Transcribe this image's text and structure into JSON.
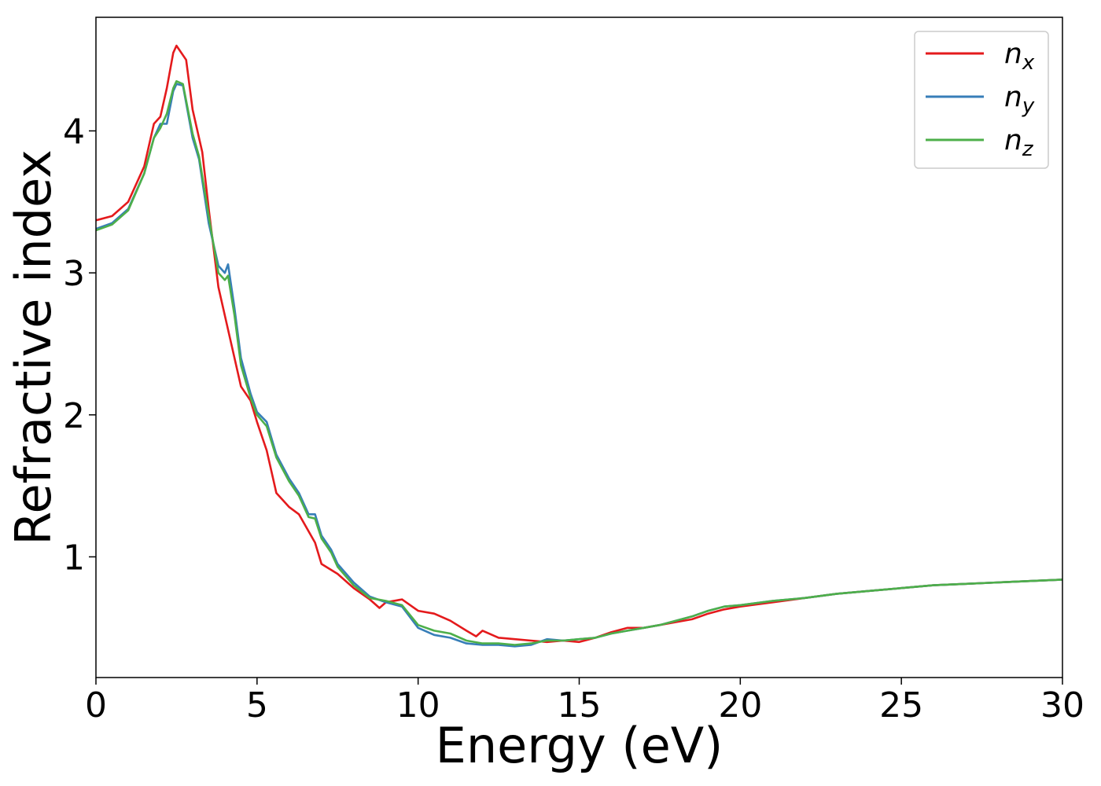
{
  "chart_data": {
    "type": "line",
    "title": "",
    "xlabel": "Energy (eV)",
    "ylabel": "Refractive index",
    "xlim": [
      0,
      30
    ],
    "ylim": [
      0.15,
      4.8
    ],
    "xticks": [
      0,
      5,
      10,
      15,
      20,
      25,
      30
    ],
    "xtick_labels": [
      "0",
      "5",
      "10",
      "15",
      "20",
      "25",
      "30"
    ],
    "yticks": [
      1,
      2,
      3,
      4
    ],
    "ytick_labels": [
      "1",
      "2",
      "3",
      "4"
    ],
    "grid": false,
    "legend_position": "top-right",
    "series": [
      {
        "name": "n",
        "sub": "x",
        "color": "#e41a1c",
        "points": [
          [
            0,
            3.37
          ],
          [
            0.5,
            3.4
          ],
          [
            1.0,
            3.5
          ],
          [
            1.5,
            3.75
          ],
          [
            1.8,
            4.05
          ],
          [
            2.0,
            4.1
          ],
          [
            2.2,
            4.3
          ],
          [
            2.4,
            4.55
          ],
          [
            2.5,
            4.6
          ],
          [
            2.8,
            4.5
          ],
          [
            3.0,
            4.15
          ],
          [
            3.3,
            3.85
          ],
          [
            3.5,
            3.45
          ],
          [
            3.8,
            2.9
          ],
          [
            4.0,
            2.7
          ],
          [
            4.2,
            2.5
          ],
          [
            4.5,
            2.2
          ],
          [
            4.8,
            2.1
          ],
          [
            5.0,
            1.95
          ],
          [
            5.3,
            1.75
          ],
          [
            5.6,
            1.45
          ],
          [
            6.0,
            1.35
          ],
          [
            6.3,
            1.3
          ],
          [
            6.8,
            1.1
          ],
          [
            7.0,
            0.95
          ],
          [
            7.5,
            0.88
          ],
          [
            8.0,
            0.78
          ],
          [
            8.5,
            0.7
          ],
          [
            8.8,
            0.64
          ],
          [
            9.0,
            0.68
          ],
          [
            9.5,
            0.7
          ],
          [
            10.0,
            0.62
          ],
          [
            10.5,
            0.6
          ],
          [
            11.0,
            0.55
          ],
          [
            11.5,
            0.48
          ],
          [
            11.8,
            0.44
          ],
          [
            12.0,
            0.48
          ],
          [
            12.5,
            0.43
          ],
          [
            13.0,
            0.42
          ],
          [
            13.5,
            0.41
          ],
          [
            14.0,
            0.4
          ],
          [
            14.5,
            0.41
          ],
          [
            15.0,
            0.4
          ],
          [
            15.5,
            0.43
          ],
          [
            16.0,
            0.47
          ],
          [
            16.5,
            0.5
          ],
          [
            17.0,
            0.5
          ],
          [
            17.5,
            0.52
          ],
          [
            18.0,
            0.54
          ],
          [
            18.5,
            0.56
          ],
          [
            19.0,
            0.6
          ],
          [
            19.5,
            0.63
          ],
          [
            20.0,
            0.65
          ],
          [
            21.0,
            0.68
          ],
          [
            22.0,
            0.71
          ],
          [
            23.0,
            0.74
          ],
          [
            24.0,
            0.76
          ],
          [
            25.0,
            0.78
          ],
          [
            26.0,
            0.8
          ],
          [
            27.0,
            0.81
          ],
          [
            28.0,
            0.82
          ],
          [
            29.0,
            0.83
          ],
          [
            30.0,
            0.84
          ]
        ]
      },
      {
        "name": "n",
        "sub": "y",
        "color": "#377eb8",
        "points": [
          [
            0,
            3.31
          ],
          [
            0.5,
            3.35
          ],
          [
            1.0,
            3.45
          ],
          [
            1.5,
            3.7
          ],
          [
            1.8,
            3.95
          ],
          [
            2.0,
            4.05
          ],
          [
            2.2,
            4.05
          ],
          [
            2.4,
            4.28
          ],
          [
            2.5,
            4.33
          ],
          [
            2.7,
            4.32
          ],
          [
            3.0,
            3.95
          ],
          [
            3.2,
            3.8
          ],
          [
            3.5,
            3.35
          ],
          [
            3.8,
            3.05
          ],
          [
            4.0,
            3.0
          ],
          [
            4.1,
            3.06
          ],
          [
            4.3,
            2.75
          ],
          [
            4.5,
            2.4
          ],
          [
            4.8,
            2.15
          ],
          [
            5.0,
            2.02
          ],
          [
            5.3,
            1.95
          ],
          [
            5.6,
            1.72
          ],
          [
            6.0,
            1.55
          ],
          [
            6.3,
            1.45
          ],
          [
            6.6,
            1.3
          ],
          [
            6.8,
            1.3
          ],
          [
            7.0,
            1.15
          ],
          [
            7.3,
            1.05
          ],
          [
            7.5,
            0.95
          ],
          [
            8.0,
            0.82
          ],
          [
            8.5,
            0.72
          ],
          [
            9.0,
            0.68
          ],
          [
            9.5,
            0.65
          ],
          [
            10.0,
            0.5
          ],
          [
            10.5,
            0.45
          ],
          [
            11.0,
            0.43
          ],
          [
            11.5,
            0.39
          ],
          [
            12.0,
            0.38
          ],
          [
            12.5,
            0.38
          ],
          [
            13.0,
            0.37
          ],
          [
            13.5,
            0.38
          ],
          [
            14.0,
            0.42
          ],
          [
            14.5,
            0.41
          ],
          [
            15.0,
            0.42
          ],
          [
            15.5,
            0.43
          ],
          [
            16.0,
            0.46
          ],
          [
            16.5,
            0.48
          ],
          [
            17.0,
            0.5
          ],
          [
            17.5,
            0.52
          ],
          [
            18.0,
            0.55
          ],
          [
            18.5,
            0.58
          ],
          [
            19.0,
            0.62
          ],
          [
            19.5,
            0.65
          ],
          [
            20.0,
            0.66
          ],
          [
            21.0,
            0.69
          ],
          [
            22.0,
            0.71
          ],
          [
            23.0,
            0.74
          ],
          [
            24.0,
            0.76
          ],
          [
            25.0,
            0.78
          ],
          [
            26.0,
            0.8
          ],
          [
            27.0,
            0.81
          ],
          [
            28.0,
            0.82
          ],
          [
            29.0,
            0.83
          ],
          [
            30.0,
            0.84
          ]
        ]
      },
      {
        "name": "n",
        "sub": "z",
        "color": "#4daf4a",
        "points": [
          [
            0,
            3.3
          ],
          [
            0.5,
            3.34
          ],
          [
            1.0,
            3.44
          ],
          [
            1.5,
            3.7
          ],
          [
            1.8,
            3.95
          ],
          [
            2.0,
            4.02
          ],
          [
            2.2,
            4.12
          ],
          [
            2.4,
            4.3
          ],
          [
            2.5,
            4.35
          ],
          [
            2.7,
            4.33
          ],
          [
            3.0,
            3.98
          ],
          [
            3.2,
            3.82
          ],
          [
            3.5,
            3.4
          ],
          [
            3.8,
            3.0
          ],
          [
            4.0,
            2.95
          ],
          [
            4.1,
            2.98
          ],
          [
            4.3,
            2.7
          ],
          [
            4.5,
            2.35
          ],
          [
            4.8,
            2.12
          ],
          [
            5.0,
            2.0
          ],
          [
            5.3,
            1.92
          ],
          [
            5.6,
            1.7
          ],
          [
            6.0,
            1.53
          ],
          [
            6.3,
            1.43
          ],
          [
            6.6,
            1.28
          ],
          [
            6.8,
            1.27
          ],
          [
            7.0,
            1.13
          ],
          [
            7.3,
            1.03
          ],
          [
            7.5,
            0.93
          ],
          [
            8.0,
            0.8
          ],
          [
            8.5,
            0.71
          ],
          [
            9.0,
            0.69
          ],
          [
            9.5,
            0.66
          ],
          [
            10.0,
            0.52
          ],
          [
            10.5,
            0.48
          ],
          [
            11.0,
            0.46
          ],
          [
            11.5,
            0.41
          ],
          [
            12.0,
            0.39
          ],
          [
            12.5,
            0.39
          ],
          [
            13.0,
            0.38
          ],
          [
            13.5,
            0.39
          ],
          [
            14.0,
            0.41
          ],
          [
            14.5,
            0.41
          ],
          [
            15.0,
            0.42
          ],
          [
            15.5,
            0.43
          ],
          [
            16.0,
            0.46
          ],
          [
            16.5,
            0.48
          ],
          [
            17.0,
            0.5
          ],
          [
            17.5,
            0.52
          ],
          [
            18.0,
            0.55
          ],
          [
            18.5,
            0.58
          ],
          [
            19.0,
            0.62
          ],
          [
            19.5,
            0.65
          ],
          [
            20.0,
            0.66
          ],
          [
            21.0,
            0.69
          ],
          [
            22.0,
            0.71
          ],
          [
            23.0,
            0.74
          ],
          [
            24.0,
            0.76
          ],
          [
            25.0,
            0.78
          ],
          [
            26.0,
            0.8
          ],
          [
            27.0,
            0.81
          ],
          [
            28.0,
            0.82
          ],
          [
            29.0,
            0.83
          ],
          [
            30.0,
            0.84
          ]
        ]
      }
    ]
  }
}
